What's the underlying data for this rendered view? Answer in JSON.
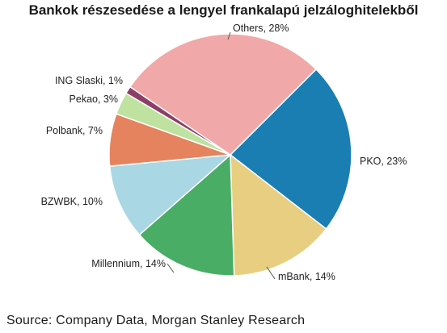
{
  "chart_data": {
    "type": "pie",
    "title": "Bankok részesedése a lengyel frankalapú jelzáloghitelekből",
    "slices": [
      {
        "name": "PKO",
        "value": 23,
        "label": "PKO, 23%",
        "color": "#1a7eb3"
      },
      {
        "name": "mBank",
        "value": 14,
        "label": "mBank, 14%",
        "color": "#e8ce80"
      },
      {
        "name": "Millennium",
        "value": 14,
        "label": "Millennium, 14%",
        "color": "#4aad66"
      },
      {
        "name": "BZWBK",
        "value": 10,
        "label": "BZWBK, 10%",
        "color": "#a9d7e3"
      },
      {
        "name": "Polbank",
        "value": 7,
        "label": "Polbank, 7%",
        "color": "#e5835f"
      },
      {
        "name": "Pekao",
        "value": 3,
        "label": "Pekao, 3%",
        "color": "#bfe2a0"
      },
      {
        "name": "ING Slaski",
        "value": 1,
        "label": "ING Slaski, 1%",
        "color": "#8c3e67"
      },
      {
        "name": "Others",
        "value": 28,
        "label": "Others, 28%",
        "color": "#f0a9a8"
      }
    ]
  },
  "footer": {
    "source": "Source: Company Data, Morgan Stanley Research"
  }
}
